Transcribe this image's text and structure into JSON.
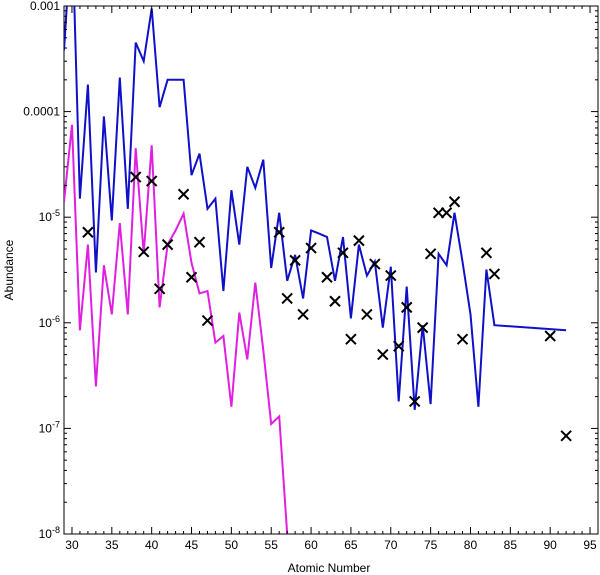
{
  "chart_data": {
    "type": "line",
    "title": "",
    "xlabel": "Atomic Number",
    "ylabel": "Abundance",
    "xlim": [
      29,
      96
    ],
    "ylim_log10": [
      -8,
      -3
    ],
    "y_scale": "log",
    "grid": false,
    "legend": "none",
    "x_ticks": [
      30,
      35,
      40,
      45,
      50,
      55,
      60,
      65,
      70,
      75,
      80,
      85,
      90,
      95
    ],
    "x_tick_labels": [
      "30",
      "35",
      "40",
      "45",
      "50",
      "55",
      "60",
      "65",
      "70",
      "75",
      "80",
      "85",
      "90",
      "95"
    ],
    "y_ticks": [
      -8,
      -7,
      -6,
      -5,
      -4,
      -3
    ],
    "y_tick_labels": [
      {
        "base": "10",
        "exp": "-8"
      },
      {
        "base": "10",
        "exp": "-7"
      },
      {
        "base": "10",
        "exp": "-6"
      },
      {
        "base": "10",
        "exp": "-5"
      },
      {
        "base": "0.0001",
        "exp": ""
      },
      {
        "base": "0.001",
        "exp": ""
      }
    ],
    "series": [
      {
        "color": "#1010c8",
        "style": "line",
        "x": [
          29,
          30,
          31,
          32,
          33,
          34,
          35,
          36,
          37,
          38,
          39,
          40,
          41,
          42,
          43,
          44,
          45,
          46,
          47,
          48,
          49,
          50,
          51,
          52,
          53,
          54,
          55,
          56,
          57,
          58,
          59,
          60,
          61,
          62,
          63,
          64,
          65,
          66,
          67,
          68,
          69,
          70,
          71,
          72,
          73,
          74,
          75,
          76,
          77,
          78,
          79,
          80,
          81,
          82,
          83,
          92
        ],
        "y": [
          0.00038,
          0.006,
          1.5e-05,
          0.00018,
          3e-06,
          9e-05,
          9.3e-06,
          0.00021,
          1.2e-05,
          0.00045,
          0.0003,
          0.00095,
          0.00011,
          0.0002,
          0.0002,
          0.0002,
          2.5e-05,
          4e-05,
          1.2e-05,
          1.5e-05,
          2e-06,
          1.8e-05,
          5.5e-06,
          3e-05,
          1.9e-05,
          3.5e-05,
          3.3e-06,
          1.1e-05,
          2.5e-06,
          4.4e-06,
          1.7e-06,
          7.5e-06,
          7e-06,
          6.5e-06,
          2.5e-06,
          6.5e-06,
          1.1e-06,
          5.5e-06,
          2.8e-06,
          3.8e-06,
          9e-07,
          3.4e-06,
          1.8e-07,
          2.2e-06,
          1.5e-07,
          9.5e-07,
          1.7e-07,
          4.5e-06,
          3.5e-06,
          1.1e-05,
          3.8e-06,
          1.2e-06,
          1.6e-07,
          3.2e-06,
          9.5e-07,
          8.5e-07
        ]
      },
      {
        "color": "#e020e0",
        "style": "line",
        "x": [
          29,
          30,
          31,
          32,
          33,
          34,
          35,
          36,
          37,
          38,
          39,
          40,
          41,
          42,
          43,
          44,
          45,
          46,
          47,
          48,
          49,
          50,
          51,
          52,
          53,
          54,
          55,
          56,
          57
        ],
        "y": [
          1.4e-05,
          7.5e-05,
          8.5e-07,
          5.5e-06,
          2.5e-07,
          3.5e-06,
          1.2e-06,
          8.8e-06,
          1.2e-06,
          4.5e-05,
          4.5e-06,
          4.8e-05,
          1.4e-06,
          5.5e-06,
          7.5e-06,
          1.08e-05,
          3.7e-06,
          1.9e-06,
          2e-06,
          6.5e-07,
          7.5e-07,
          1.6e-07,
          1.25e-06,
          4.5e-07,
          2.4e-06,
          5.5e-07,
          1.1e-07,
          1.3e-07,
          1e-08
        ]
      },
      {
        "color": "#000000",
        "style": "marker-x",
        "x": [
          32,
          38,
          39,
          40,
          41,
          42,
          44,
          45,
          46,
          47,
          56,
          57,
          58,
          59,
          60,
          62,
          63,
          64,
          65,
          66,
          67,
          68,
          69,
          70,
          71,
          72,
          73,
          74,
          75,
          76,
          77,
          78,
          79,
          82,
          83,
          90,
          92
        ],
        "y": [
          7.2e-06,
          2.4e-05,
          4.7e-06,
          2.2e-05,
          2.1e-06,
          5.5e-06,
          1.65e-05,
          2.7e-06,
          5.8e-06,
          1.05e-06,
          7.2e-06,
          1.7e-06,
          3.9e-06,
          1.2e-06,
          5.1e-06,
          2.7e-06,
          1.6e-06,
          4.6e-06,
          7e-07,
          6e-06,
          1.2e-06,
          3.6e-06,
          5e-07,
          2.8e-06,
          6e-07,
          1.4e-06,
          1.8e-07,
          9e-07,
          4.5e-06,
          1.1e-05,
          1.1e-05,
          1.4e-05,
          7e-07,
          4.6e-06,
          2.9e-06,
          7.5e-07,
          8.5e-08
        ]
      }
    ]
  }
}
